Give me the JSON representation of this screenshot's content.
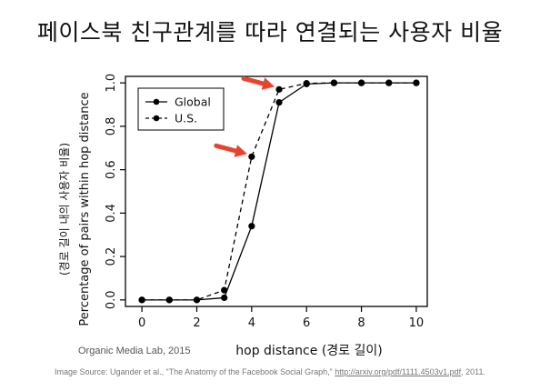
{
  "slide": {
    "title": "페이스북 친구관계를 따라  연결되는 사용자 비율",
    "credit": "Organic Media Lab, 2015",
    "source_prefix": "Image Source: Ugander et al., “The Anatomy of the Facebook Social Graph,” ",
    "source_link": "http://arxiv.org/pdf/1111.4503v1.pdf",
    "source_suffix": ", 2011."
  },
  "colors": {
    "axis": "#000000",
    "series": "#000000",
    "arrow": "#e8432d",
    "text": "#111111"
  },
  "chart_data": {
    "type": "line",
    "title": "",
    "xlabel": "hop distance (경로 길이)",
    "ylabel": "Percentage of pairs within hop distance",
    "ylabel2": "(경로 길이 내의 사용자 비율)",
    "xlim": [
      -0.6,
      10.4
    ],
    "ylim": [
      -0.03,
      1.03
    ],
    "xticks": [
      0,
      2,
      4,
      6,
      8,
      10
    ],
    "yticks": [
      0.0,
      0.2,
      0.4,
      0.6,
      0.8,
      1.0
    ],
    "ytick_labels": [
      "0.0",
      "0.2",
      "0.4",
      "0.6",
      "0.8",
      "1.0"
    ],
    "legend_position": "top-left",
    "series": [
      {
        "name": "Global",
        "style": "solid",
        "x": [
          0,
          1,
          2,
          3,
          4,
          5,
          6,
          7,
          8,
          9,
          10
        ],
        "y": [
          0.0,
          0.0,
          0.0,
          0.01,
          0.34,
          0.91,
          0.995,
          1.0,
          1.0,
          1.0,
          1.0
        ]
      },
      {
        "name": "U.S.",
        "style": "dashed",
        "x": [
          0,
          1,
          2,
          3,
          4,
          5,
          6,
          7,
          8,
          9,
          10
        ],
        "y": [
          0.0,
          0.0,
          0.0,
          0.045,
          0.66,
          0.97,
          0.998,
          1.0,
          1.0,
          1.0,
          1.0
        ]
      }
    ],
    "annotations": [
      {
        "type": "arrow",
        "target": {
          "x": 4,
          "y": 0.66
        }
      },
      {
        "type": "arrow",
        "target": {
          "x": 5,
          "y": 0.97
        }
      }
    ]
  }
}
